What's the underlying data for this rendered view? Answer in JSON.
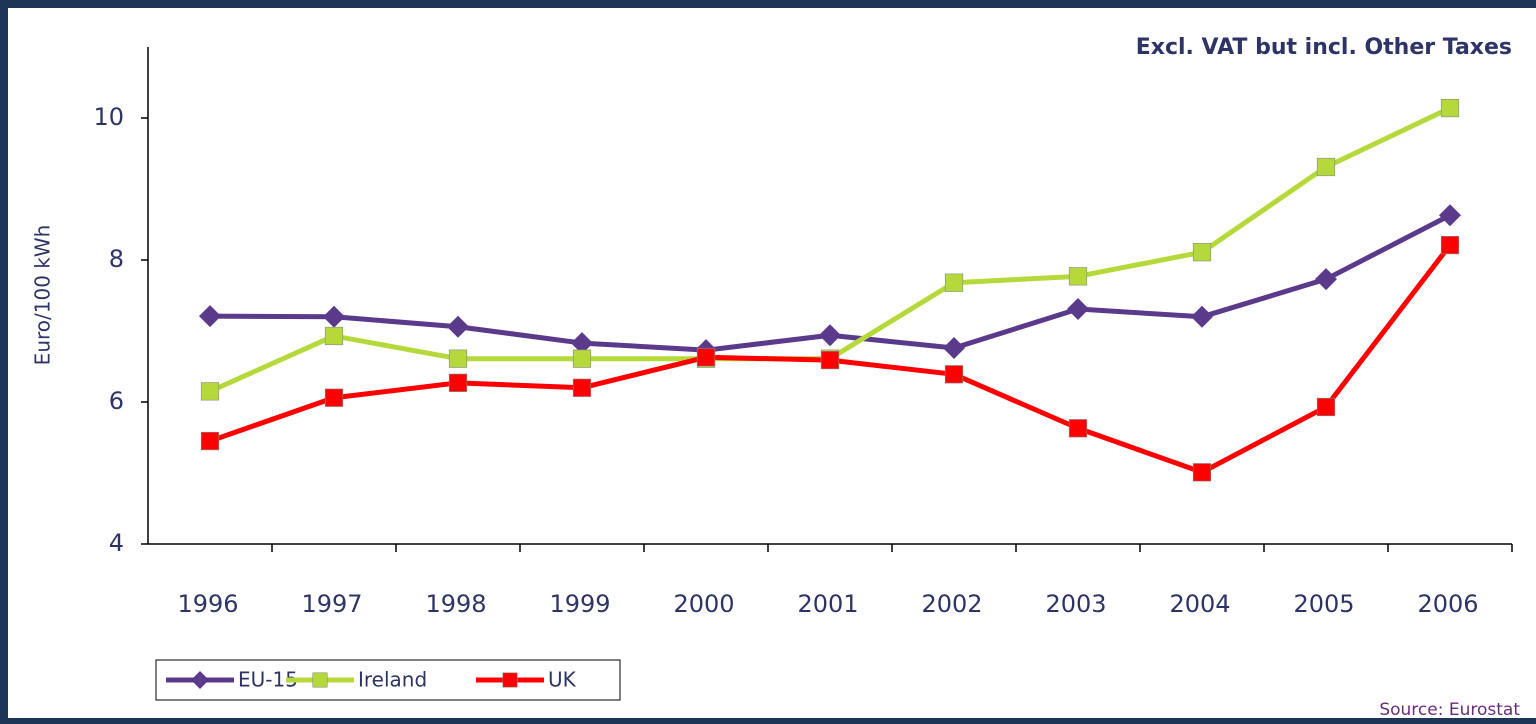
{
  "chart_data": {
    "type": "line",
    "annotation": "Excl. VAT but incl. Other Taxes",
    "y_label": "Euro/100 kWh",
    "source": "Source: Eurostat",
    "categories": [
      "1996",
      "1997",
      "1998",
      "1999",
      "2000",
      "2001",
      "2002",
      "2003",
      "2004",
      "2005",
      "2006"
    ],
    "series": [
      {
        "name": "EU-15",
        "color": "#5b3a8c",
        "marker": "diamond",
        "values": [
          7.21,
          7.2,
          7.06,
          6.83,
          6.73,
          6.94,
          6.76,
          7.31,
          7.2,
          7.73,
          8.63
        ]
      },
      {
        "name": "Ireland",
        "color": "#b5d93a",
        "marker": "square",
        "values": [
          6.15,
          6.93,
          6.61,
          6.61,
          6.61,
          6.61,
          7.68,
          7.77,
          8.11,
          9.31,
          10.14
        ]
      },
      {
        "name": "UK",
        "color": "#ff0000",
        "marker": "square",
        "values": [
          5.45,
          6.06,
          6.27,
          6.2,
          6.63,
          6.59,
          6.39,
          5.63,
          5.01,
          5.93,
          8.21
        ]
      }
    ],
    "ylim": [
      4,
      11
    ],
    "yticks": [
      4,
      6,
      8,
      10
    ],
    "legend": "bottom-left",
    "grid": false
  }
}
